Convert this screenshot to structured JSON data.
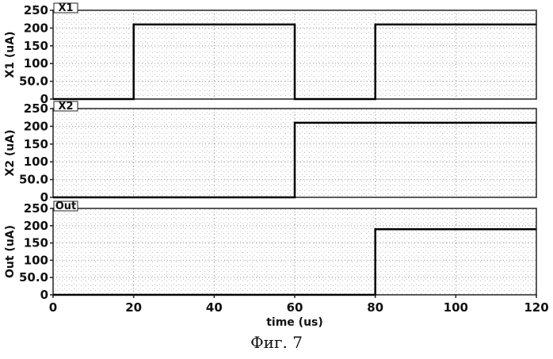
{
  "caption": "Фиг. 7",
  "chart_data": [
    {
      "type": "line",
      "tag": "X1",
      "ylabel": "X1 (uA)",
      "xlim": [
        0,
        120
      ],
      "ylim": [
        0,
        250
      ],
      "yticks": [
        "0",
        "50.0",
        "100",
        "150",
        "200",
        "250"
      ],
      "x": [
        0,
        20,
        20,
        60,
        60,
        80,
        80,
        120
      ],
      "y": [
        0,
        0,
        210,
        210,
        0,
        0,
        210,
        210
      ]
    },
    {
      "type": "line",
      "tag": "X2",
      "ylabel": "X2 (uA)",
      "xlim": [
        0,
        120
      ],
      "ylim": [
        0,
        250
      ],
      "yticks": [
        "0",
        "50.0",
        "100",
        "150",
        "200",
        "250"
      ],
      "x": [
        0,
        60,
        60,
        120
      ],
      "y": [
        0,
        0,
        210,
        210
      ]
    },
    {
      "type": "line",
      "tag": "Out",
      "ylabel": "Out (uA)",
      "xlabel": "time (us)",
      "xlim": [
        0,
        120
      ],
      "ylim": [
        0,
        250
      ],
      "yticks": [
        "0",
        "50.0",
        "100",
        "150",
        "200",
        "250"
      ],
      "xticks": [
        "0",
        "20",
        "40",
        "60",
        "80",
        "100",
        "120"
      ],
      "x": [
        0,
        80,
        80,
        120
      ],
      "y": [
        0,
        0,
        190,
        190
      ]
    }
  ]
}
